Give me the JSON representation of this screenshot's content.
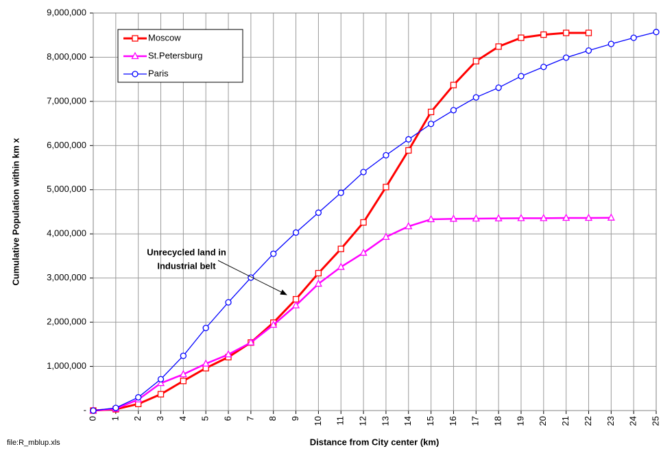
{
  "chart_data": {
    "type": "line",
    "x_label": "Distance from City center (km)",
    "y_label": "Cumulative Population within km x",
    "footnote": "file:R_mblup.xls",
    "annotation": [
      "Unrecycled land in",
      "Industrial belt"
    ],
    "xlim": [
      0,
      25
    ],
    "xticks": [
      0,
      1,
      2,
      3,
      4,
      5,
      6,
      7,
      8,
      9,
      10,
      11,
      12,
      13,
      14,
      15,
      16,
      17,
      18,
      19,
      20,
      21,
      22,
      23,
      24,
      25
    ],
    "ylim": [
      0,
      9000000
    ],
    "yticks": [
      {
        "value": 0,
        "label": "-"
      },
      {
        "value": 1000000,
        "label": "1,000,000"
      },
      {
        "value": 2000000,
        "label": "2,000,000"
      },
      {
        "value": 3000000,
        "label": "3,000,000"
      },
      {
        "value": 4000000,
        "label": "4,000,000"
      },
      {
        "value": 5000000,
        "label": "5,000,000"
      },
      {
        "value": 6000000,
        "label": "6,000,000"
      },
      {
        "value": 7000000,
        "label": "7,000,000"
      },
      {
        "value": 8000000,
        "label": "8,000,000"
      },
      {
        "value": 9000000,
        "label": "9,000,000"
      }
    ],
    "grid": true,
    "legend": "upper left",
    "series": [
      {
        "name": "Moscow",
        "color": "#ff0000",
        "marker": "square",
        "x": [
          0,
          1,
          2,
          3,
          4,
          5,
          6,
          7,
          8,
          9,
          10,
          11,
          12,
          13,
          14,
          15,
          16,
          17,
          18,
          19,
          20,
          21,
          22
        ],
        "values": [
          0,
          30000,
          150000,
          370000,
          670000,
          960000,
          1210000,
          1540000,
          1990000,
          2520000,
          3110000,
          3660000,
          4260000,
          5060000,
          5890000,
          6760000,
          7370000,
          7910000,
          8240000,
          8440000,
          8510000,
          8550000,
          8550000
        ]
      },
      {
        "name": "St.Petersburg",
        "color": "#ff00ff",
        "marker": "triangle",
        "x": [
          0,
          1,
          2,
          3,
          4,
          5,
          6,
          7,
          8,
          9,
          10,
          11,
          12,
          13,
          14,
          15,
          16,
          17,
          18,
          19,
          20,
          21,
          22,
          23
        ],
        "values": [
          0,
          40000,
          250000,
          620000,
          820000,
          1060000,
          1270000,
          1540000,
          1940000,
          2380000,
          2870000,
          3250000,
          3570000,
          3930000,
          4170000,
          4330000,
          4340000,
          4345000,
          4350000,
          4355000,
          4355000,
          4360000,
          4360000,
          4365000
        ]
      },
      {
        "name": "Paris",
        "color": "#0000ff",
        "marker": "circle",
        "x": [
          0,
          1,
          2,
          3,
          4,
          5,
          6,
          7,
          8,
          9,
          10,
          11,
          12,
          13,
          14,
          15,
          16,
          17,
          18,
          19,
          20,
          21,
          22,
          23,
          24,
          25
        ],
        "values": [
          0,
          60000,
          300000,
          710000,
          1240000,
          1870000,
          2450000,
          3010000,
          3550000,
          4030000,
          4480000,
          4930000,
          5400000,
          5780000,
          6140000,
          6490000,
          6800000,
          7090000,
          7310000,
          7570000,
          7780000,
          7990000,
          8150000,
          8300000,
          8440000,
          8570000
        ]
      }
    ]
  }
}
